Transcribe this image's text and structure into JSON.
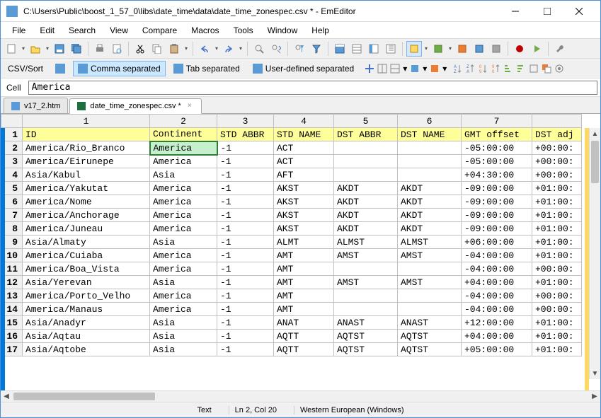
{
  "window": {
    "title": "C:\\Users\\Public\\boost_1_57_0\\libs\\date_time\\data\\date_time_zonespec.csv * - EmEditor"
  },
  "menubar": [
    "File",
    "Edit",
    "Search",
    "View",
    "Compare",
    "Macros",
    "Tools",
    "Window",
    "Help"
  ],
  "csv_toolbar": {
    "label": "CSV/Sort",
    "modes": [
      {
        "label": "",
        "active": false
      },
      {
        "label": "Comma separated",
        "active": true
      },
      {
        "label": "Tab separated",
        "active": false
      },
      {
        "label": "User-defined separated",
        "active": false
      }
    ]
  },
  "cell_bar": {
    "label": "Cell",
    "value": "America"
  },
  "tabs": [
    {
      "label": "v17_2.htm",
      "active": false,
      "icon": "ie"
    },
    {
      "label": "date_time_zonespec.csv *",
      "active": true,
      "icon": "excel"
    }
  ],
  "grid": {
    "col_headers": [
      "1",
      "2",
      "3",
      "4",
      "5",
      "6",
      "7",
      ""
    ],
    "header_row": [
      "ID",
      "Continent",
      "STD ABBR",
      "STD NAME",
      "DST ABBR",
      "DST NAME",
      "GMT offset",
      "DST adj"
    ],
    "active": {
      "row": 2,
      "col": 2
    },
    "rows": [
      {
        "n": 2,
        "cells": [
          "America/Rio_Branco",
          "America",
          "-1",
          "ACT",
          "",
          "",
          "-05:00:00",
          "+00:00:"
        ]
      },
      {
        "n": 3,
        "cells": [
          "America/Eirunepe",
          "America",
          "-1",
          "ACT",
          "",
          "",
          "-05:00:00",
          "+00:00:"
        ]
      },
      {
        "n": 4,
        "cells": [
          "Asia/Kabul",
          "Asia",
          "-1",
          "AFT",
          "",
          "",
          "+04:30:00",
          "+00:00:"
        ]
      },
      {
        "n": 5,
        "cells": [
          "America/Yakutat",
          "America",
          "-1",
          "AKST",
          "AKDT",
          "AKDT",
          "-09:00:00",
          "+01:00:"
        ]
      },
      {
        "n": 6,
        "cells": [
          "America/Nome",
          "America",
          "-1",
          "AKST",
          "AKDT",
          "AKDT",
          "-09:00:00",
          "+01:00:"
        ]
      },
      {
        "n": 7,
        "cells": [
          "America/Anchorage",
          "America",
          "-1",
          "AKST",
          "AKDT",
          "AKDT",
          "-09:00:00",
          "+01:00:"
        ]
      },
      {
        "n": 8,
        "cells": [
          "America/Juneau",
          "America",
          "-1",
          "AKST",
          "AKDT",
          "AKDT",
          "-09:00:00",
          "+01:00:"
        ]
      },
      {
        "n": 9,
        "cells": [
          "Asia/Almaty",
          "Asia",
          "-1",
          "ALMT",
          "ALMST",
          "ALMST",
          "+06:00:00",
          "+01:00:"
        ]
      },
      {
        "n": 10,
        "cells": [
          "America/Cuiaba",
          "America",
          "-1",
          "AMT",
          "AMST",
          "AMST",
          "-04:00:00",
          "+01:00:"
        ]
      },
      {
        "n": 11,
        "cells": [
          "America/Boa_Vista",
          "America",
          "-1",
          "AMT",
          "",
          "",
          "-04:00:00",
          "+00:00:"
        ]
      },
      {
        "n": 12,
        "cells": [
          "Asia/Yerevan",
          "Asia",
          "-1",
          "AMT",
          "AMST",
          "AMST",
          "+04:00:00",
          "+01:00:"
        ]
      },
      {
        "n": 13,
        "cells": [
          "America/Porto_Velho",
          "America",
          "-1",
          "AMT",
          "",
          "",
          "-04:00:00",
          "+00:00:"
        ]
      },
      {
        "n": 14,
        "cells": [
          "America/Manaus",
          "America",
          "-1",
          "AMT",
          "",
          "",
          "-04:00:00",
          "+00:00:"
        ]
      },
      {
        "n": 15,
        "cells": [
          "Asia/Anadyr",
          "Asia",
          "-1",
          "ANAT",
          "ANAST",
          "ANAST",
          "+12:00:00",
          "+01:00:"
        ]
      },
      {
        "n": 16,
        "cells": [
          "Asia/Aqtau",
          "Asia",
          "-1",
          "AQTT",
          "AQTST",
          "AQTST",
          "+04:00:00",
          "+01:00:"
        ]
      },
      {
        "n": 17,
        "cells": [
          "Asia/Aqtobe",
          "Asia",
          "-1",
          "AQTT",
          "AQTST",
          "AQTST",
          "+05:00:00",
          "+01:00:"
        ]
      }
    ]
  },
  "statusbar": {
    "mode": "Text",
    "position": "Ln 2, Col 20",
    "encoding": "Western European (Windows)"
  },
  "colors": {
    "header_row_bg": "#ffff99",
    "active_cell_bg": "#c6efce",
    "active_cell_border": "#2e7d32"
  }
}
